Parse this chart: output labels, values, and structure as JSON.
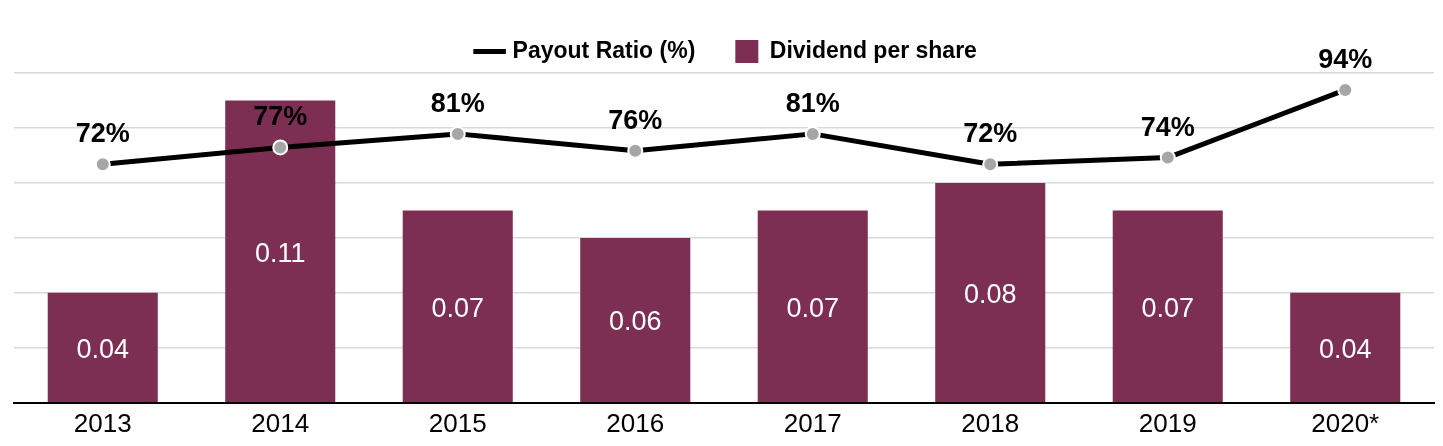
{
  "chart_data": {
    "type": "bar",
    "categories": [
      "2013",
      "2014",
      "2015",
      "2016",
      "2017",
      "2018",
      "2019",
      "2020*"
    ],
    "series": [
      {
        "name": "Payout Ratio (%)",
        "type": "line",
        "axis": "y2",
        "color": "#000000",
        "values": [
          72,
          77,
          81,
          76,
          81,
          72,
          74,
          94
        ],
        "value_labels": [
          "72%",
          "77%",
          "81%",
          "76%",
          "81%",
          "72%",
          "74%",
          "94%"
        ]
      },
      {
        "name": "Dividend per share",
        "color": "#7d2e53",
        "values": [
          0.04,
          0.11,
          0.07,
          0.06,
          0.07,
          0.08,
          0.07,
          0.04
        ],
        "value_labels": [
          "0.04",
          "0.11",
          "0.07",
          "0.06",
          "0.07",
          "0.08",
          "0.07",
          "0.04"
        ]
      }
    ],
    "ylim": [
      0,
      0.12
    ],
    "y2lim": [
      1.5,
      99
    ],
    "tick_labels": "x",
    "grid": "y",
    "legend": "top",
    "marker": "circle",
    "line_style": "solid"
  }
}
